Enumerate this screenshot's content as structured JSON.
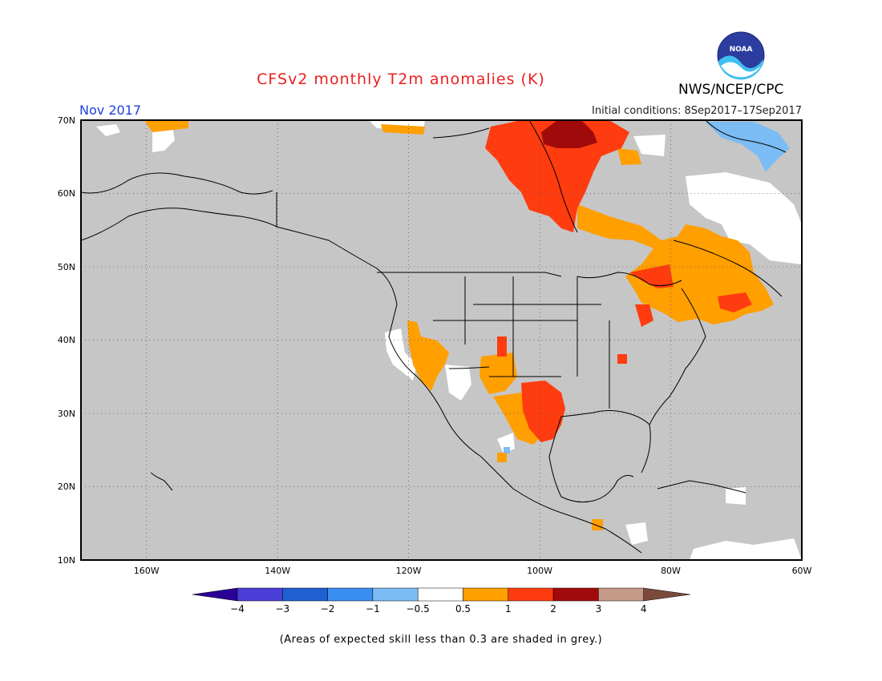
{
  "header": {
    "title": "CFSv2 monthly T2m anomalies (K)",
    "agency": "NWS/NCEP/CPC",
    "logo_text": "NOAA",
    "valid_month": "Nov 2017",
    "initial_conditions": "Initial conditions: 8Sep2017–17Sep2017"
  },
  "map": {
    "projection": "lat-lon",
    "lon_range": [
      -170,
      -60
    ],
    "lat_range": [
      10,
      70
    ],
    "lat_labels": [
      "70N",
      "60N",
      "50N",
      "40N",
      "30N",
      "20N",
      "10N"
    ],
    "lon_labels": [
      "160W",
      "140W",
      "120W",
      "100W",
      "80W",
      "60W"
    ],
    "gridlines": "dotted",
    "background_no_skill": "#c6c6c6"
  },
  "legend": {
    "ticks": [
      "−4",
      "−3",
      "−2",
      "−1",
      "−0.5",
      "0.5",
      "1",
      "2",
      "3",
      "4"
    ],
    "colors": [
      "#2a0096",
      "#4a3ed6",
      "#1e5fd2",
      "#3a8ef0",
      "#7bbcf5",
      "#ffffff",
      "#ff9f00",
      "#ff3c0f",
      "#a00a0a",
      "#c59a89",
      "#7b4a3c"
    ]
  },
  "footnote": "(Areas of expected skill less than 0.3 are shaded in grey.)"
}
